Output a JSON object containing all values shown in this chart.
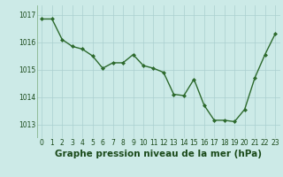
{
  "x": [
    0,
    1,
    2,
    3,
    4,
    5,
    6,
    7,
    8,
    9,
    10,
    11,
    12,
    13,
    14,
    15,
    16,
    17,
    18,
    19,
    20,
    21,
    22,
    23
  ],
  "y": [
    1016.85,
    1016.85,
    1016.1,
    1015.85,
    1015.75,
    1015.5,
    1015.05,
    1015.25,
    1015.25,
    1015.55,
    1015.15,
    1015.05,
    1014.9,
    1014.1,
    1014.05,
    1014.65,
    1013.7,
    1013.15,
    1013.15,
    1013.1,
    1013.55,
    1014.7,
    1015.55,
    1016.3
  ],
  "line_color": "#2d6a2d",
  "marker": "D",
  "marker_size": 2.0,
  "bg_color": "#cceae7",
  "grid_color": "#aacfcf",
  "xlabel": "Graphe pression niveau de la mer (hPa)",
  "xlabel_fontsize": 7.5,
  "ylim_min": 1012.5,
  "ylim_max": 1017.35,
  "ytick_positions": [
    1013,
    1014,
    1015,
    1016,
    1017
  ],
  "xtick_labels": [
    "0",
    "1",
    "2",
    "3",
    "4",
    "5",
    "6",
    "7",
    "8",
    "9",
    "10",
    "11",
    "12",
    "13",
    "14",
    "15",
    "16",
    "17",
    "18",
    "19",
    "20",
    "21",
    "22",
    "23"
  ],
  "tick_fontsize": 5.5,
  "grid_alpha": 1.0,
  "line_width": 1.0
}
